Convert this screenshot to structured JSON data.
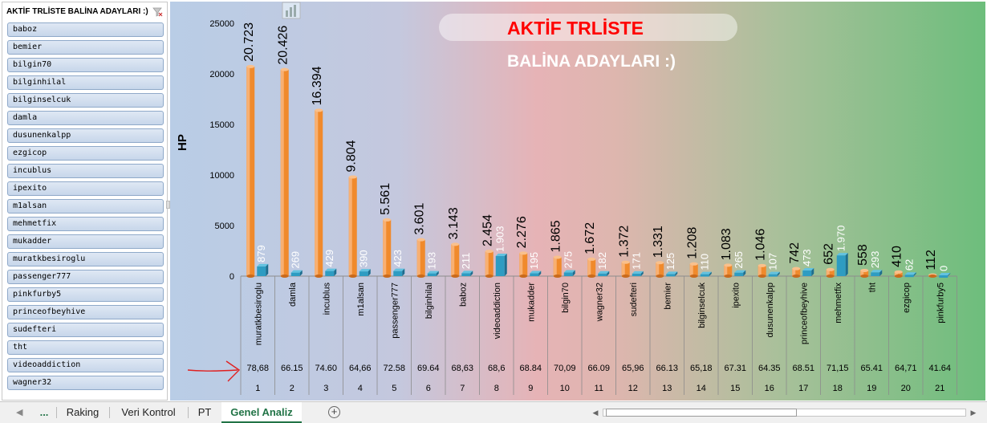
{
  "slicer": {
    "title": "AKTİF TRLİSTE BALİNA ADAYLARI :)",
    "filter_icon": "clear-filter-icon",
    "items": [
      "baboz",
      "bemier",
      "bilgin70",
      "bilginhilal",
      "bilginselcuk",
      "damla",
      "dusunenkalpp",
      "ezgicop",
      "incublus",
      "ipexito",
      "m1alsan",
      "mehmetfix",
      "mukadder",
      "muratkbesiroglu",
      "passenger777",
      "pinkfurby5",
      "princeofbeyhive",
      "sudefteri",
      "tht",
      "videoaddiction",
      "wagner32"
    ]
  },
  "chart_title": {
    "line1": "AKTİF TRLİSTE",
    "line2": "BALİNA ADAYLARI :)"
  },
  "chart_data": {
    "type": "bar",
    "ylabel": "HP",
    "ylim": [
      0,
      25000
    ],
    "yticks": [
      "0",
      "5000",
      "10000",
      "15000",
      "20000",
      "25000"
    ],
    "categories": [
      "muratkbesiroglu",
      "damla",
      "incublus",
      "m1alsan",
      "passenger777",
      "bilginhilal",
      "baboz",
      "videoaddiction",
      "mukadder",
      "bilgin70",
      "wagner32",
      "sudefteri",
      "bemier",
      "bilginselcuk",
      "ipexito",
      "dusunenkalpp",
      "princeofbeyhive",
      "mehmetfix",
      "tht",
      "ezgicop",
      "pinkfurby5"
    ],
    "series": [
      {
        "values": [
          20723,
          20426,
          16394,
          9804,
          5561,
          3601,
          3143,
          2454,
          2276,
          1865,
          1672,
          1372,
          1331,
          1208,
          1083,
          1046,
          742,
          652,
          558,
          410,
          112
        ],
        "labels": [
          "20.723",
          "20.426",
          "16.394",
          "9.804",
          "5.561",
          "3.601",
          "3.143",
          "2.454",
          "2.276",
          "1.865",
          "1.672",
          "1.372",
          "1.331",
          "1.208",
          "1.083",
          "1.046",
          "742",
          "652",
          "558",
          "410",
          "112"
        ],
        "color": "#f08a2c"
      },
      {
        "values": [
          879,
          269,
          429,
          390,
          423,
          193,
          211,
          1903,
          195,
          275,
          182,
          171,
          125,
          110,
          265,
          107,
          473,
          1970,
          293,
          62,
          0
        ],
        "labels": [
          "879",
          "269",
          "429",
          "390",
          "423",
          "193",
          "211",
          "1.903",
          "195",
          "275",
          "182",
          "171",
          "125",
          "110",
          "265",
          "107",
          "473",
          "1.970",
          "293",
          "62",
          "0"
        ],
        "color": "#2e9cc2"
      }
    ],
    "table_row1": [
      "78,68",
      "66.15",
      "74.60",
      "64,66",
      "72.58",
      "69.64",
      "68,63",
      "68,6",
      "68.84",
      "70,09",
      "66.09",
      "65,96",
      "66.13",
      "65,18",
      "67.31",
      "64.35",
      "68.51",
      "71,15",
      "65.41",
      "64,71",
      "41.64"
    ],
    "table_row2": [
      "1",
      "2",
      "3",
      "4",
      "5",
      "6",
      "7",
      "8",
      "9",
      "10",
      "11",
      "12",
      "13",
      "14",
      "15",
      "16",
      "17",
      "18",
      "19",
      "20",
      "21"
    ],
    "annotation_color": "#e02020",
    "title_color": "#ff0000"
  },
  "tabs": {
    "nav_prev": "◀",
    "nav_next": "▶",
    "more": "...",
    "items": [
      "Raking",
      "Veri Kontrol",
      "PT",
      "Genel Analiz"
    ],
    "active": "Genel Analiz",
    "add": "+"
  },
  "scrollbar": {
    "left": "◀",
    "right": "▶"
  }
}
